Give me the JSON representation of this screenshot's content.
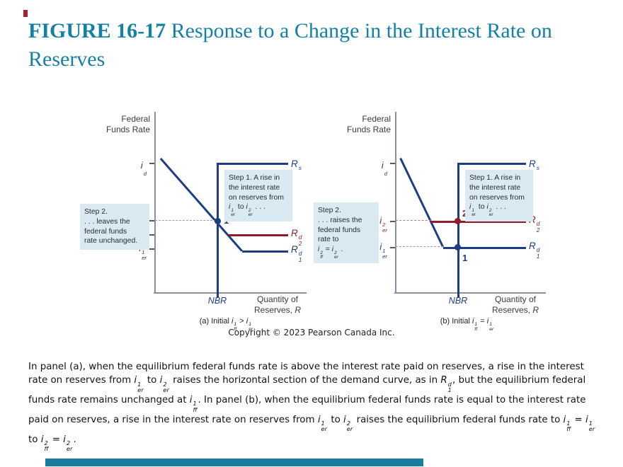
{
  "colors": {
    "title_teal": "#1480a4",
    "curve_navy": "#1f3d82",
    "curve_dark_red": "#8e1d28",
    "callout_bg": "#d9eaf2",
    "axis_gray": "#8c9196",
    "footer_bar_teal": "#197d9d",
    "accent_red": "#b01f24"
  },
  "title": {
    "prefix": "FIGURE 16-17",
    "rest": " Response to a Change in the Interest Rate on Reserves"
  },
  "panel_a": {
    "y_axis_label": [
      {
        "t": "Federal"
      },
      {
        "br": true
      },
      {
        "t": "Funds Rate"
      }
    ],
    "x_axis_label": [
      {
        "t": "Quantity of"
      },
      {
        "br": true
      },
      {
        "t": "Reserves, "
      },
      {
        "v": "R"
      }
    ],
    "tick_id": [
      {
        "v": "i",
        "sub": "d"
      }
    ],
    "tick_iff1": [
      {
        "v": "i",
        "sup": "1",
        "sub": "ff"
      }
    ],
    "tick_ier2": [
      {
        "v": "i",
        "sup": "2",
        "sub": "er"
      }
    ],
    "tick_ier1": [
      {
        "v": "i",
        "sup": "1",
        "sub": "er"
      }
    ],
    "nbr": [
      {
        "v": "NBR"
      }
    ],
    "label_rs": [
      {
        "v": "R",
        "sup": "s"
      }
    ],
    "label_rd2": [
      {
        "v": "R",
        "sup": "d",
        "sub": "2"
      }
    ],
    "label_rd1": [
      {
        "v": "R",
        "sup": "d",
        "sub": "1"
      }
    ],
    "point1": "1",
    "step1": [
      {
        "t": "Step 1. A rise in"
      },
      {
        "br": true
      },
      {
        "t": "the interest rate"
      },
      {
        "br": true
      },
      {
        "t": "on reserves from"
      },
      {
        "br": true
      },
      {
        "v": "i",
        "sup": "1",
        "sub": "er"
      },
      {
        "t": " to "
      },
      {
        "v": "i",
        "sup": "2",
        "sub": "er"
      },
      {
        "t": " . . ."
      }
    ],
    "step2": [
      {
        "t": "Step 2."
      },
      {
        "br": true
      },
      {
        "t": ". . . leaves the"
      },
      {
        "br": true
      },
      {
        "t": "federal funds"
      },
      {
        "br": true
      },
      {
        "t": "rate unchanged."
      }
    ],
    "caption": [
      {
        "t": "(a) Initial "
      },
      {
        "v": "i",
        "sup": "1",
        "sub": "ff"
      },
      {
        "t": " > "
      },
      {
        "v": "i",
        "sup": "1",
        "sub": "er"
      }
    ]
  },
  "panel_b": {
    "y_axis_label": [
      {
        "t": "Federal"
      },
      {
        "br": true
      },
      {
        "t": "Funds Rate"
      }
    ],
    "x_axis_label": [
      {
        "t": "Quantity of"
      },
      {
        "br": true
      },
      {
        "t": "Reserves, "
      },
      {
        "v": "R"
      }
    ],
    "tick_id": [
      {
        "v": "i",
        "sub": "d"
      }
    ],
    "tick_upper": [
      {
        "v": "i",
        "sup": "2",
        "sub": "ff"
      },
      {
        "t": " = "
      },
      {
        "v": "i",
        "sup": "2",
        "sub": "er"
      }
    ],
    "tick_lower": [
      {
        "v": "i",
        "sup": "1",
        "sub": "ff"
      },
      {
        "t": " = "
      },
      {
        "v": "i",
        "sup": "1",
        "sub": "er"
      }
    ],
    "nbr": [
      {
        "v": "NBR"
      }
    ],
    "label_rs": [
      {
        "v": "R",
        "sup": "s"
      }
    ],
    "label_rd2": [
      {
        "v": "R",
        "sup": "d",
        "sub": "2"
      }
    ],
    "label_rd1": [
      {
        "v": "R",
        "sup": "d",
        "sub": "1"
      }
    ],
    "point1": "1",
    "point2": "2",
    "step1": [
      {
        "t": "Step 1. A rise in"
      },
      {
        "br": true
      },
      {
        "t": "the interest rate"
      },
      {
        "br": true
      },
      {
        "t": "on reserves from"
      },
      {
        "br": true
      },
      {
        "v": "i",
        "sup": "1",
        "sub": "er"
      },
      {
        "t": " to "
      },
      {
        "v": "i",
        "sup": "2",
        "sub": "er"
      },
      {
        "t": " . . ."
      }
    ],
    "step2": [
      {
        "t": "Step 2."
      },
      {
        "br": true
      },
      {
        "t": ". . . raises the"
      },
      {
        "br": true
      },
      {
        "t": "federal funds"
      },
      {
        "br": true
      },
      {
        "t": "rate to"
      },
      {
        "br": true
      },
      {
        "v": "i",
        "sup": "2",
        "sub": "ff"
      },
      {
        "t": " = "
      },
      {
        "v": "i",
        "sup": "2",
        "sub": "er"
      },
      {
        "t": " ."
      }
    ],
    "caption": [
      {
        "t": "(b) Initial "
      },
      {
        "v": "i",
        "sup": "1",
        "sub": "ff"
      },
      {
        "t": " = "
      },
      {
        "v": "i",
        "sup": "1",
        "sub": "er"
      }
    ]
  },
  "copyright": "Copyright © 2023 Pearson Canada Inc.",
  "body": [
    {
      "t": "In panel (a), when the equilibrium federal funds rate is above the interest rate paid on reserves, a rise in the interest rate on reserves from "
    },
    {
      "v": "i",
      "sup": "1",
      "sub": "er"
    },
    {
      "t": " to "
    },
    {
      "v": "i",
      "sup": "2",
      "sub": "er"
    },
    {
      "t": " raises the horizontal section of the demand curve, as in "
    },
    {
      "v": "R",
      "sup": "d",
      "sub": "1"
    },
    {
      "t": ", but the equilibrium federal funds rate remains unchanged at "
    },
    {
      "v": "i",
      "sup": "1",
      "sub": "ff"
    },
    {
      "t": ". In panel (b), when the equilibrium federal funds rate is equal to the interest rate paid on reserves, a rise in the interest rate on reserves from "
    },
    {
      "v": "i",
      "sup": "1",
      "sub": "er"
    },
    {
      "t": " to "
    },
    {
      "v": "i",
      "sup": "2",
      "sub": "er"
    },
    {
      "t": " raises the equilibrium federal funds rate to "
    },
    {
      "v": "i",
      "sup": "1",
      "sub": "ff"
    },
    {
      "t": " = "
    },
    {
      "v": "i",
      "sup": "1",
      "sub": "er"
    },
    {
      "t": " to "
    },
    {
      "v": "i",
      "sup": "2",
      "sub": "ff"
    },
    {
      "t": " = "
    },
    {
      "v": "i",
      "sup": "2",
      "sub": "er"
    },
    {
      "t": "."
    }
  ]
}
